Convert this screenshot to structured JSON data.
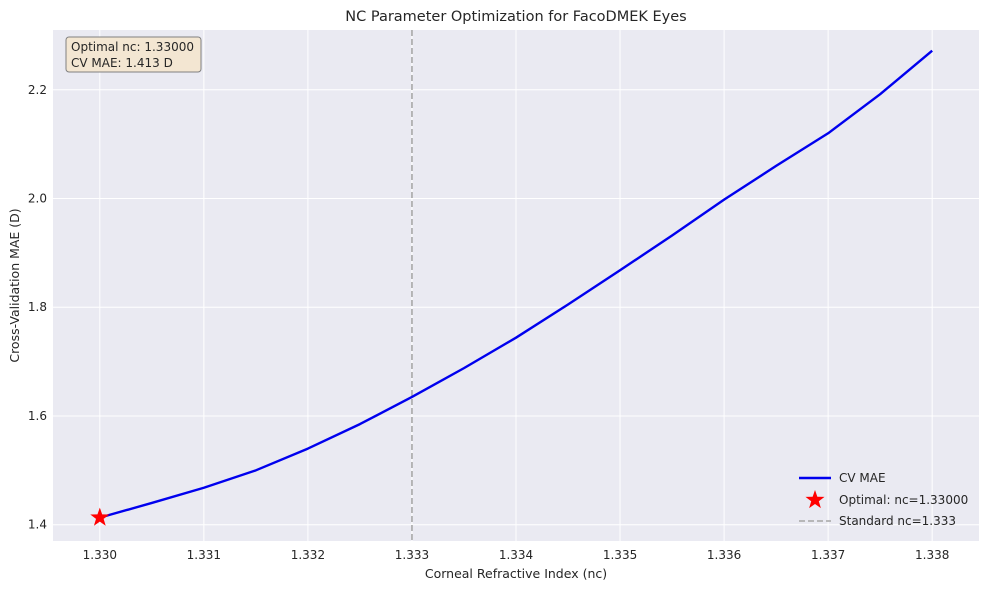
{
  "chart_data": {
    "type": "line",
    "title": "NC Parameter Optimization for FacoDMEK Eyes",
    "xlabel": "Corneal Refractive Index (nc)",
    "ylabel": "Cross-Validation MAE (D)",
    "xlim": [
      1.32955,
      1.33845
    ],
    "ylim": [
      1.37,
      2.31
    ],
    "x_ticks": [
      1.33,
      1.331,
      1.332,
      1.333,
      1.334,
      1.335,
      1.336,
      1.337,
      1.338
    ],
    "x_tick_labels": [
      "1.330",
      "1.331",
      "1.332",
      "1.333",
      "1.334",
      "1.335",
      "1.336",
      "1.337",
      "1.338"
    ],
    "y_ticks": [
      1.4,
      1.6,
      1.8,
      2.0,
      2.2
    ],
    "y_tick_labels": [
      "1.4",
      "1.6",
      "1.8",
      "2.0",
      "2.2"
    ],
    "grid": true,
    "series": [
      {
        "name": "CV MAE",
        "color": "#0000ee",
        "x": [
          1.33,
          1.3305,
          1.331,
          1.3315,
          1.332,
          1.3325,
          1.333,
          1.3335,
          1.334,
          1.3345,
          1.335,
          1.3355,
          1.336,
          1.3365,
          1.337,
          1.3375,
          1.338
        ],
        "y": [
          1.413,
          1.44,
          1.468,
          1.5,
          1.54,
          1.585,
          1.635,
          1.688,
          1.744,
          1.805,
          1.868,
          1.932,
          1.998,
          2.06,
          2.12,
          2.192,
          2.272
        ]
      }
    ],
    "optimal_point": {
      "name": "Optimal: nc=1.33000",
      "x": 1.33,
      "y": 1.413,
      "color": "#ff0000",
      "marker": "star"
    },
    "reference_line": {
      "name": "Standard nc=1.333",
      "x": 1.333,
      "color": "#b0b0b0",
      "style": "dashed"
    },
    "legend_position": "bottom-right",
    "annotation": {
      "lines": [
        "Optimal nc: 1.33000",
        "CV MAE: 1.413 D"
      ],
      "position": "top-left"
    }
  }
}
